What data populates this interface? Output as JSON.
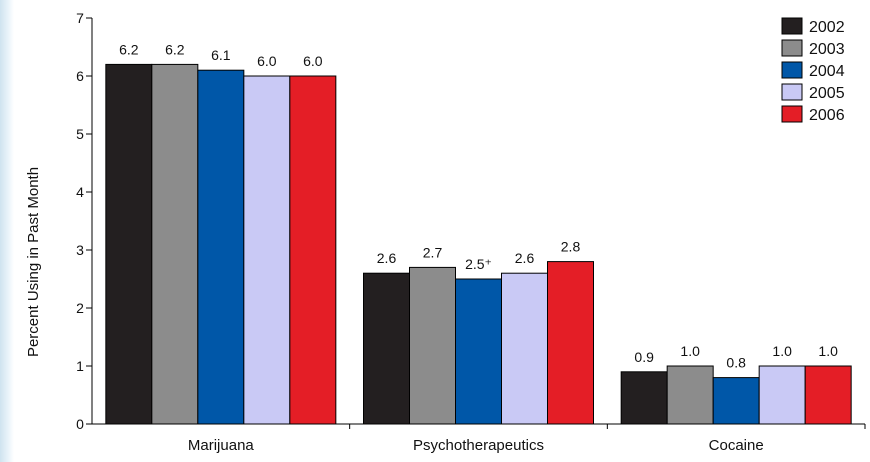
{
  "chart_data": {
    "type": "bar",
    "title": "",
    "ylabel": "Percent Using in Past Month",
    "xlabel": "",
    "ylim": [
      0,
      7
    ],
    "yticks": [
      0,
      1,
      2,
      3,
      4,
      5,
      6,
      7
    ],
    "categories": [
      "Marijuana",
      "Psychotherapeutics",
      "Cocaine"
    ],
    "series": [
      {
        "name": "2002",
        "color": "#231f20",
        "values": [
          6.2,
          2.6,
          0.9
        ],
        "labels": [
          "6.2",
          "2.6",
          "0.9"
        ]
      },
      {
        "name": "2003",
        "color": "#8c8c8c",
        "values": [
          6.2,
          2.7,
          1.0
        ],
        "labels": [
          "6.2",
          "2.7",
          "1.0"
        ]
      },
      {
        "name": "2004",
        "color": "#0057a8",
        "values": [
          6.1,
          2.5,
          0.8
        ],
        "labels": [
          "6.1",
          "2.5⁺",
          "0.8"
        ]
      },
      {
        "name": "2005",
        "color": "#c9c9f5",
        "values": [
          6.0,
          2.6,
          1.0
        ],
        "labels": [
          "6.0",
          "2.6",
          "1.0"
        ]
      },
      {
        "name": "2006",
        "color": "#e41e26",
        "values": [
          6.0,
          2.8,
          1.0
        ],
        "labels": [
          "6.0",
          "2.8",
          "1.0"
        ]
      }
    ],
    "legend_position": "top-right",
    "grid": false
  }
}
